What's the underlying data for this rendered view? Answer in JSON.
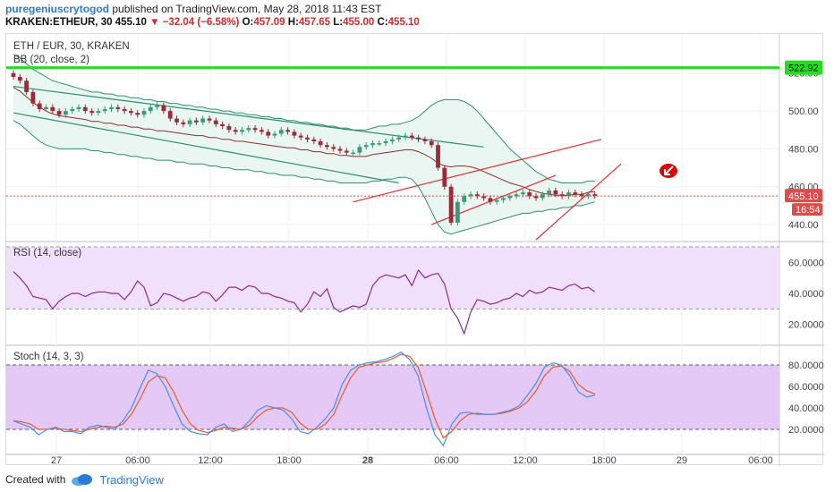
{
  "header": {
    "author": "puregeniuscrytogod",
    "published_text": "published on TradingView.com, May 28, 2018 11:43 EST",
    "symbol": "KRAKEN:ETHEUR, 30",
    "last": "455.10",
    "change": "−32.04 (−6.58%)",
    "o_label": "O:",
    "o_val": "457.09",
    "h_label": "H:",
    "h_val": "457.65",
    "l_label": "L:",
    "l_val": "455.00",
    "c_label": "C:",
    "c_val": "455.10"
  },
  "footer": {
    "created_with": "Created with",
    "brand": "TradingView"
  },
  "colors": {
    "up": "#3a9b7a",
    "down": "#9c2b37",
    "bb": "#2f8f6f",
    "basis": "#8b2f2f",
    "trend_green": "#2f8f6f",
    "trend_red": "#e03030",
    "level": "#22dd22",
    "rsi_line": "#8a2b8f",
    "rsi_bg": "#f1e0fb",
    "stoch_bg": "#e4c9f7",
    "stoch_k": "#4a8ee8",
    "stoch_d": "#ec5a2a",
    "price_tag": "#e04a4a",
    "arrow_icon": "#e00000"
  },
  "chart_data": [
    {
      "type": "candlestick",
      "title": "ETH / EUR, 30, KRAKEN",
      "indicator_label": "BB (20, close, 2)",
      "yticks": [
        "440.00",
        "460.00",
        "480.00",
        "500.00",
        "520.00"
      ],
      "ylim": [
        432,
        535
      ],
      "level_label": "522.92",
      "level_value": 522.92,
      "last_label": "455.10",
      "last_value": 455.1,
      "countdown_label": "16:54",
      "closes": [
        518,
        516,
        510,
        504,
        501,
        502,
        500,
        498,
        500,
        501,
        502,
        500,
        499,
        500,
        501,
        502,
        501,
        500,
        499,
        498,
        500,
        502,
        503,
        500,
        496,
        494,
        493,
        495,
        494,
        496,
        495,
        493,
        492,
        490,
        489,
        490,
        491,
        490,
        489,
        487,
        488,
        490,
        489,
        487,
        486,
        485,
        484,
        482,
        481,
        480,
        479,
        478,
        478,
        481,
        482,
        483,
        483,
        484,
        485,
        486,
        487,
        486,
        485,
        484,
        482,
        470,
        460,
        441,
        452,
        455,
        456,
        455,
        454,
        452,
        453,
        454,
        455,
        456,
        457,
        455,
        454,
        456,
        458,
        456,
        455,
        457,
        456,
        455,
        456,
        455.1
      ],
      "bb_upper": [
        530,
        528,
        525,
        522,
        520,
        518,
        516,
        515,
        514,
        513,
        512,
        511,
        510,
        510,
        509,
        509,
        508,
        508,
        507,
        507,
        506,
        506,
        505,
        505,
        504,
        504,
        503,
        503,
        502,
        502,
        501,
        501,
        500,
        500,
        499,
        499,
        498,
        498,
        497,
        497,
        496,
        496,
        495,
        495,
        494,
        494,
        493,
        493,
        492,
        492,
        491,
        491,
        490,
        490,
        490,
        491,
        492,
        492,
        493,
        493,
        494,
        495,
        497,
        500,
        503,
        505,
        506,
        506,
        506,
        505,
        503,
        500,
        496,
        492,
        488,
        484,
        480,
        477,
        474,
        471,
        468,
        466,
        464,
        463,
        462,
        462,
        462,
        462,
        463,
        463
      ],
      "bb_lower": [
        495,
        493,
        490,
        487,
        484,
        482,
        481,
        480,
        480,
        480,
        480,
        480,
        479,
        479,
        478,
        478,
        477,
        477,
        476,
        476,
        475,
        475,
        474,
        474,
        474,
        473,
        473,
        472,
        472,
        472,
        471,
        471,
        470,
        470,
        469,
        469,
        469,
        468,
        468,
        467,
        467,
        466,
        466,
        466,
        465,
        465,
        464,
        464,
        463,
        463,
        462,
        462,
        462,
        462,
        462,
        463,
        463,
        464,
        464,
        465,
        465,
        464,
        460,
        454,
        447,
        440,
        436,
        435,
        436,
        437,
        438,
        439,
        440,
        441,
        442,
        443,
        444,
        445,
        446,
        446,
        447,
        447,
        448,
        448,
        449,
        449,
        450,
        450,
        451,
        452
      ],
      "trendlines": [
        {
          "color": "green",
          "x1": 0,
          "y1": 513,
          "x2": 72,
          "y2": 481
        },
        {
          "color": "green",
          "x1": 0,
          "y1": 499,
          "x2": 59,
          "y2": 462
        },
        {
          "color": "red",
          "x1": 52,
          "y1": 452,
          "x2": 90,
          "y2": 485
        },
        {
          "color": "red",
          "x1": 64,
          "y1": 440,
          "x2": 83,
          "y2": 466
        },
        {
          "color": "red",
          "x1": 80,
          "y1": 432,
          "x2": 93,
          "y2": 472
        }
      ]
    },
    {
      "type": "line",
      "title": "RSI (14, close)",
      "yticks": [
        "20.0000",
        "40.0000",
        "60.0000"
      ],
      "ylim": [
        10,
        70
      ],
      "band": [
        30,
        70
      ],
      "values": [
        54,
        50,
        45,
        38,
        37,
        36,
        30,
        35,
        38,
        40,
        40,
        38,
        40,
        41,
        41,
        40,
        40,
        36,
        41,
        48,
        44,
        32,
        34,
        40,
        39,
        37,
        35,
        37,
        38,
        41,
        40,
        35,
        39,
        44,
        44,
        42,
        45,
        44,
        40,
        40,
        38,
        37,
        35,
        34,
        28,
        33,
        41,
        38,
        43,
        31,
        28,
        30,
        32,
        31,
        33,
        45,
        50,
        52,
        51,
        50,
        52,
        45,
        55,
        50,
        52,
        53,
        46,
        30,
        24,
        14,
        28,
        36,
        35,
        33,
        34,
        36,
        37,
        40,
        38,
        42,
        40,
        41,
        44,
        43,
        42,
        45,
        46,
        43,
        44,
        41
      ]
    },
    {
      "type": "line",
      "title": "Stoch (14, 3, 3)",
      "yticks": [
        "20.0000",
        "40.0000",
        "60.0000",
        "80.0000"
      ],
      "ylim": [
        0,
        95
      ],
      "band": [
        20,
        80
      ],
      "series": [
        {
          "name": "%K",
          "values": [
            28,
            25,
            22,
            15,
            20,
            22,
            18,
            18,
            16,
            22,
            24,
            22,
            20,
            28,
            40,
            58,
            75,
            72,
            60,
            42,
            25,
            18,
            16,
            15,
            22,
            25,
            18,
            20,
            28,
            38,
            42,
            40,
            38,
            30,
            18,
            16,
            22,
            30,
            40,
            62,
            75,
            80,
            82,
            83,
            85,
            88,
            92,
            85,
            70,
            40,
            15,
            5,
            25,
            35,
            36,
            34,
            34,
            34,
            36,
            38,
            42,
            52,
            63,
            78,
            82,
            80,
            70,
            55,
            50,
            52
          ]
        },
        {
          "name": "%D",
          "values": [
            28,
            27,
            25,
            20,
            20,
            21,
            20,
            19,
            18,
            20,
            22,
            23,
            22,
            25,
            34,
            48,
            64,
            70,
            68,
            55,
            38,
            25,
            19,
            17,
            19,
            22,
            21,
            20,
            24,
            32,
            38,
            40,
            40,
            36,
            26,
            20,
            20,
            25,
            34,
            52,
            68,
            78,
            80,
            82,
            83,
            86,
            90,
            88,
            78,
            55,
            30,
            12,
            18,
            28,
            34,
            35,
            34,
            34,
            35,
            37,
            40,
            46,
            56,
            70,
            78,
            79,
            74,
            62,
            56,
            53
          ]
        }
      ]
    }
  ],
  "x_axis": {
    "labels": [
      "27",
      "06:00",
      "12:00",
      "18:00",
      "28",
      "06:00",
      "12:00",
      "18:00",
      "29",
      "06:00"
    ],
    "bold": [
      false,
      false,
      false,
      false,
      true,
      false,
      false,
      false,
      false,
      false
    ]
  }
}
